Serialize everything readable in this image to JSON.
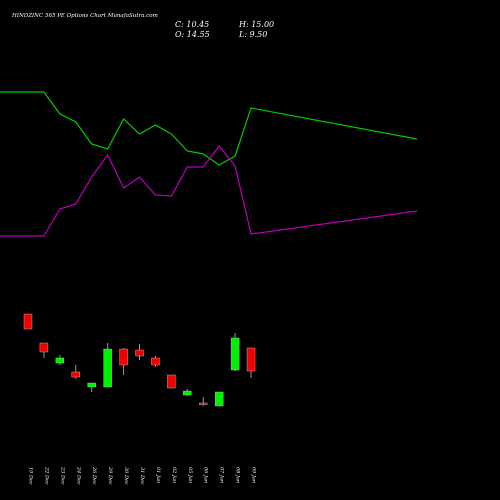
{
  "title": "HINDZINC 565 PE Options  Chart MunafaSutra.com",
  "ohlc": {
    "close": "C: 10.45",
    "high": "H: 15.00",
    "open": "O: 14.55",
    "low": "L: 9.50"
  },
  "colors": {
    "background": "#000000",
    "up_candle": "#00ee00",
    "down_candle": "#ee0000",
    "upper_line": "#00cc00",
    "lower_line": "#bb00bb",
    "wick": "#999999",
    "text": "#ffffff"
  },
  "chart_data": {
    "type": "candlestick",
    "title": "HINDZINC 565 PE Options  Chart MunafaSutra.com",
    "categories": [
      "19 Dec",
      "22 Dec",
      "23 Dec",
      "24 Dec",
      "26 Dec",
      "29 Dec",
      "30 Dec",
      "31 Dec",
      "01 Jan",
      "02 Jan",
      "05 Jan",
      "06 Jan",
      "07 Jan",
      "08 Jan",
      "09 Jan"
    ],
    "candles": [
      {
        "open": 43.0,
        "high": 43.0,
        "low": 35.5,
        "close": 35.5
      },
      {
        "open": 28.5,
        "high": 28.5,
        "low": 21.0,
        "close": 24.0
      },
      {
        "open": 18.5,
        "high": 22.5,
        "low": 17.5,
        "close": 21.0
      },
      {
        "open": 14.0,
        "high": 17.5,
        "low": 10.5,
        "close": 11.5
      },
      {
        "open": 6.5,
        "high": 8.5,
        "low": 4.0,
        "close": 8.5
      },
      {
        "open": 6.5,
        "high": 28.5,
        "low": 6.5,
        "close": 25.5
      },
      {
        "open": 25.5,
        "high": 26.0,
        "low": 12.5,
        "close": 17.5
      },
      {
        "open": 25.0,
        "high": 28.0,
        "low": 20.0,
        "close": 22.0
      },
      {
        "open": 21.0,
        "high": 22.0,
        "low": 16.5,
        "close": 17.5
      },
      {
        "open": 12.5,
        "high": 12.5,
        "low": 6.0,
        "close": 6.0
      },
      {
        "open": 2.5,
        "high": 5.5,
        "low": 2.0,
        "close": 4.5
      },
      {
        "open": -1.5,
        "high": 1.5,
        "low": -3.0,
        "close": -2.0
      },
      {
        "open": -3.0,
        "high": 4.0,
        "low": -3.0,
        "close": 4.0
      },
      {
        "open": 15.0,
        "high": 33.5,
        "low": 14.5,
        "close": 31.0
      },
      {
        "open": 26.0,
        "high": 26.0,
        "low": 11.0,
        "close": 14.5
      }
    ],
    "upper_line": [
      154.0,
      154.0,
      143.0,
      139.0,
      128.0,
      125.5,
      140.5,
      133.0,
      137.5,
      133.0,
      124.5,
      123.0,
      117.5,
      122.0,
      146.0
    ],
    "lower_line": [
      82.0,
      82.0,
      95.5,
      98.0,
      111.5,
      122.5,
      106.0,
      111.5,
      102.5,
      102.0,
      116.5,
      116.5,
      127.0,
      117.0,
      83.0
    ],
    "upper_line_end": 130.5,
    "lower_line_end": 94.5,
    "ylim": [
      -30,
      165
    ]
  }
}
